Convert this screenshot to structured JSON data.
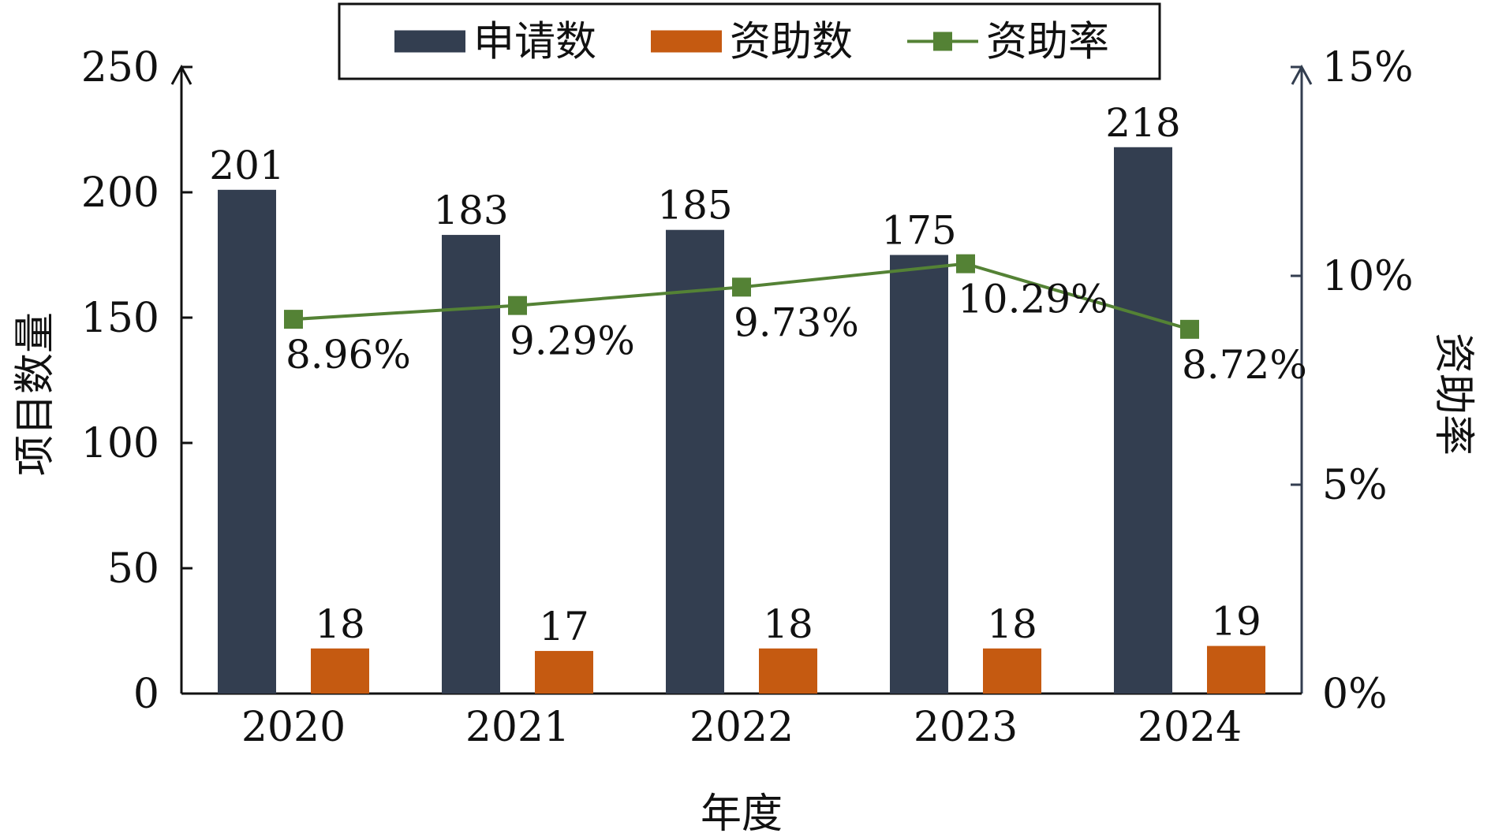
{
  "chart_data": {
    "type": "bar",
    "categories": [
      "2020",
      "2021",
      "2022",
      "2023",
      "2024"
    ],
    "series": [
      {
        "name": "申请数",
        "kind": "bar",
        "axis": "left",
        "color": "#333e50",
        "values": [
          201,
          183,
          185,
          175,
          218
        ]
      },
      {
        "name": "资助数",
        "kind": "bar",
        "axis": "left",
        "color": "#c55a11",
        "values": [
          18,
          17,
          18,
          18,
          19
        ]
      },
      {
        "name": "资助率",
        "kind": "line",
        "marker": "square",
        "axis": "right",
        "color": "#548235",
        "values": [
          8.96,
          9.29,
          9.73,
          10.29,
          8.72
        ],
        "labels": [
          "8.96%",
          "9.29%",
          "9.73%",
          "10.29%",
          "8.72%"
        ]
      }
    ],
    "title": "",
    "xlabel": "年度",
    "ylabel": "项目数量",
    "y2label": "资助率",
    "ylim": [
      0,
      250
    ],
    "y2lim": [
      0,
      15
    ],
    "yticks": [
      "0",
      "50",
      "100",
      "150",
      "200",
      "250"
    ],
    "y2ticks": [
      "0%",
      "5%",
      "10%",
      "15%"
    ],
    "grid": false,
    "legend_position": "top-center"
  }
}
